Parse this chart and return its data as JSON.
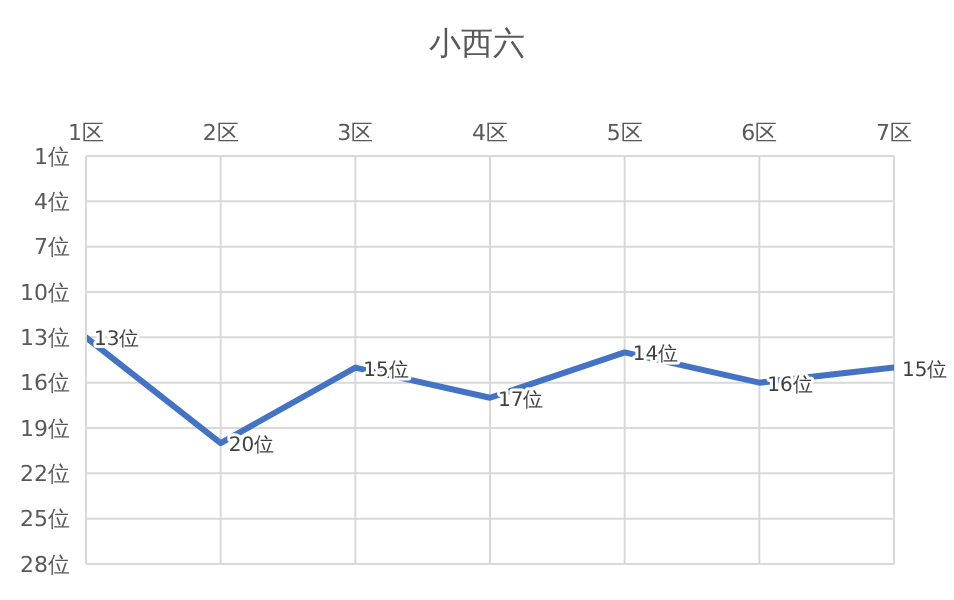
{
  "chart_data": {
    "type": "line",
    "title": "小西六",
    "categories": [
      "1区",
      "2区",
      "3区",
      "4区",
      "5区",
      "6区",
      "7区"
    ],
    "series": [
      {
        "color": "#4472c4",
        "values": [
          13,
          20,
          15,
          17,
          14,
          16,
          15
        ],
        "value_labels": [
          "13位",
          "20位",
          "15位",
          "17位",
          "14位",
          "16位",
          "15位"
        ]
      }
    ],
    "ylim": [
      28,
      1
    ],
    "yticks": [
      {
        "value": 1,
        "label": "1位"
      },
      {
        "value": 4,
        "label": "4位"
      },
      {
        "value": 7,
        "label": "7位"
      },
      {
        "value": 10,
        "label": "10位"
      },
      {
        "value": 13,
        "label": "13位"
      },
      {
        "value": 16,
        "label": "16位"
      },
      {
        "value": 19,
        "label": "19位"
      },
      {
        "value": 22,
        "label": "22位"
      },
      {
        "value": 25,
        "label": "25位"
      },
      {
        "value": 28,
        "label": "28位"
      }
    ],
    "grid": true,
    "marker": "none",
    "line_style": "solid"
  }
}
